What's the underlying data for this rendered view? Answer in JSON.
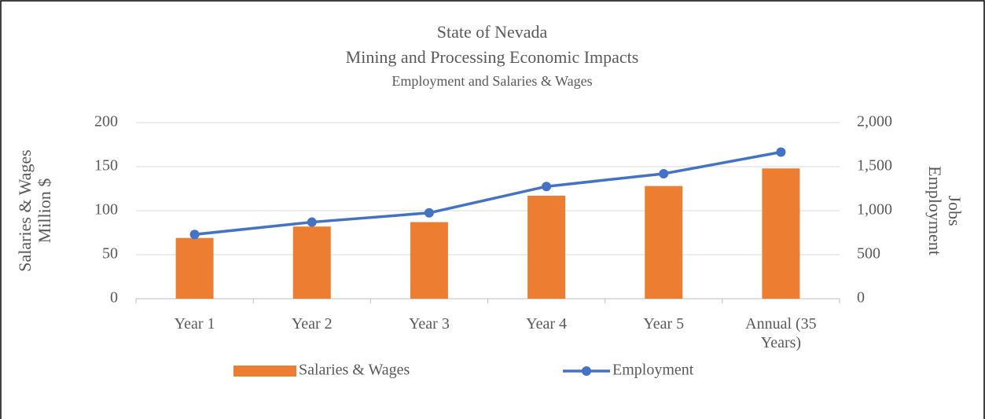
{
  "chart_data": {
    "type": "bar_line",
    "title": "State of Nevada",
    "subtitle": [
      "Mining and Processing Economic Impacts",
      "Employment and Salaries & Wages"
    ],
    "y_label": [
      "Salaries & Wages",
      "Million $"
    ],
    "y2_label": [
      "Employment",
      "Jobs"
    ],
    "categories": [
      "Year 1",
      "Year 2",
      "Year 3",
      "Year 4",
      "Year 5",
      "Annual (35 Years)"
    ],
    "series": [
      {
        "name": "Salaries & Wages",
        "type": "bar",
        "color": "#ed7d31",
        "values": [
          69,
          82,
          87,
          117,
          128,
          148
        ]
      },
      {
        "name": "Employment",
        "type": "line",
        "axis": "y2",
        "color": "#4472c4",
        "values": [
          730,
          870,
          975,
          1275,
          1420,
          1665
        ]
      }
    ],
    "ylim": [
      0,
      200
    ],
    "yticks": [
      0,
      50,
      100,
      150,
      200
    ],
    "y2lim": [
      0,
      2000
    ],
    "y2ticks": [
      0,
      500,
      {
        "value": 1000,
        "label": "1,000"
      },
      {
        "value": 1500,
        "label": "1,500"
      },
      {
        "value": 2000,
        "label": "2,000"
      }
    ],
    "grid": true,
    "legend": "bottom"
  }
}
